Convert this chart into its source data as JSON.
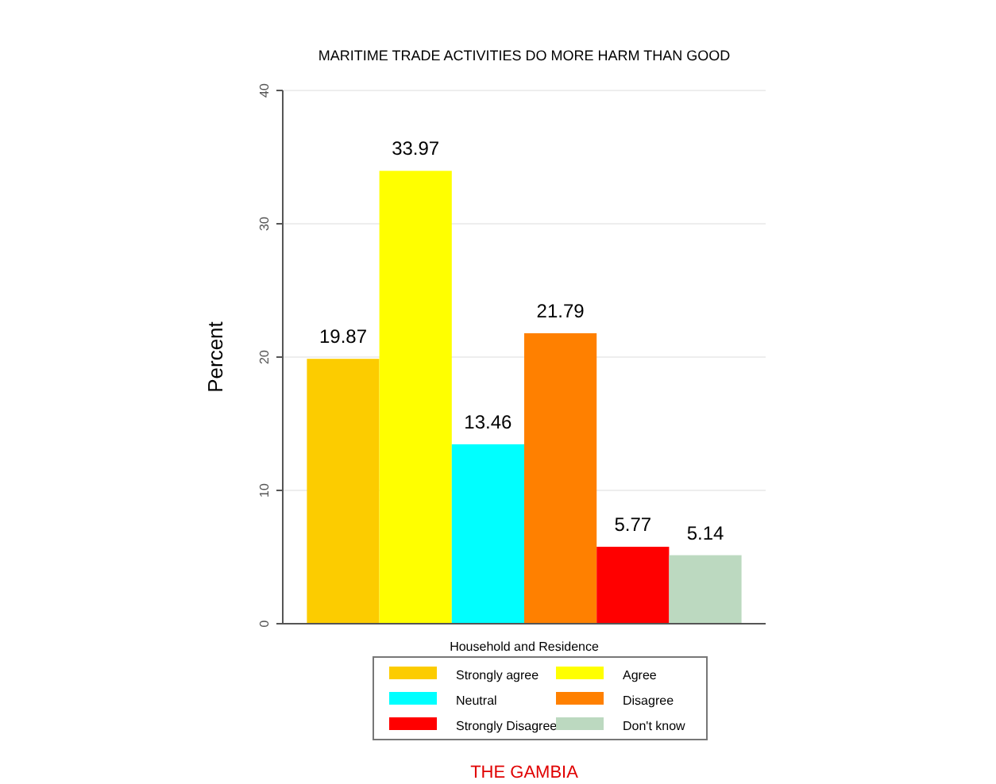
{
  "chart_data": {
    "type": "bar",
    "title": "MARITIME TRADE ACTIVITIES DO MORE HARM THAN GOOD",
    "xlabel": "Household and Residence",
    "ylabel": "Percent",
    "categories": [
      null
    ],
    "series": [
      {
        "name": "Strongly agree",
        "color": "#fccc00",
        "values": [
          19.87
        ]
      },
      {
        "name": "Agree",
        "color": "#ffff00",
        "values": [
          33.97
        ]
      },
      {
        "name": "Neutral",
        "color": "#00ffff",
        "values": [
          13.46
        ]
      },
      {
        "name": "Disagree",
        "color": "#ff8000",
        "values": [
          21.79
        ]
      },
      {
        "name": "Strongly Disagree",
        "color": "#ff0000",
        "values": [
          5.77
        ]
      },
      {
        "name": "Don't know",
        "color": "#bcd9c0",
        "values": [
          5.14
        ]
      }
    ],
    "ylim": [
      0,
      40
    ],
    "yticks": [
      0,
      10,
      20,
      30,
      40
    ],
    "grid": "y",
    "data_labels": true,
    "legend": "bottom",
    "annotations": [
      "THE GAMBIA"
    ]
  }
}
